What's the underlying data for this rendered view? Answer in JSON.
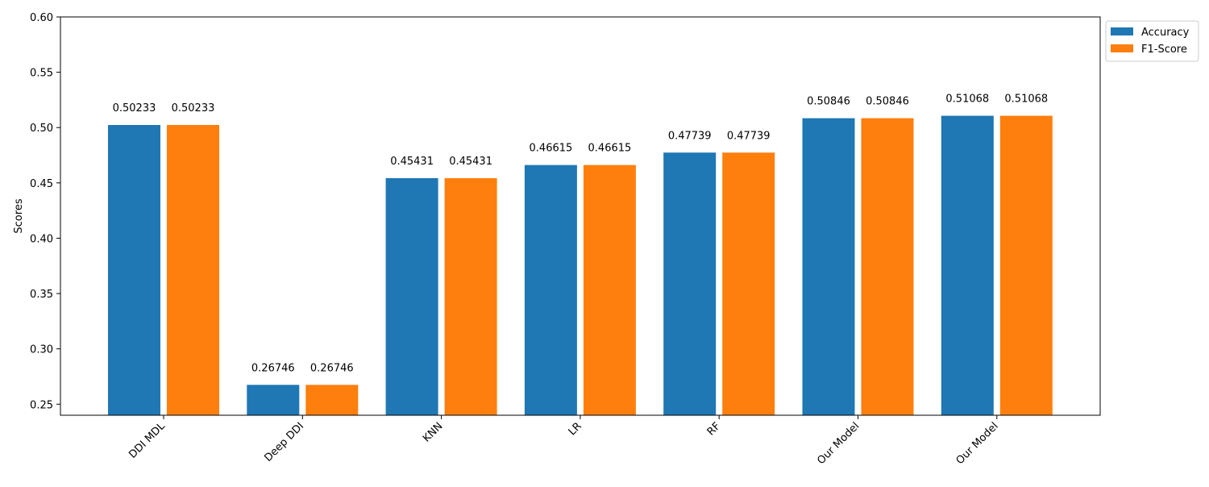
{
  "chart_data": {
    "type": "bar",
    "title": "",
    "xlabel": "",
    "ylabel": "Scores",
    "ylim": [
      0.24,
      0.6
    ],
    "yticks": [
      "0.25",
      "0.30",
      "0.35",
      "0.40",
      "0.45",
      "0.50",
      "0.55",
      "0.60"
    ],
    "categories": [
      "DDI MDL",
      "Deep DDI",
      "KNN",
      "LR",
      "RF",
      "Our Model",
      "Our Model"
    ],
    "series": [
      {
        "name": "Accuracy",
        "color": "#1f77b4",
        "values": [
          0.50233,
          0.26746,
          0.45431,
          0.46615,
          0.47739,
          0.50846,
          0.51068
        ],
        "labels": [
          "0.50233",
          "0.26746",
          "0.45431",
          "0.46615",
          "0.47739",
          "0.50846",
          "0.51068"
        ]
      },
      {
        "name": "F1-Score",
        "color": "#ff7f0e",
        "values": [
          0.50233,
          0.26746,
          0.45431,
          0.46615,
          0.47739,
          0.50846,
          0.51068
        ],
        "labels": [
          "0.50233",
          "0.26746",
          "0.45431",
          "0.46615",
          "0.47739",
          "0.50846",
          "0.51068"
        ]
      }
    ],
    "legend_position": "upper-right-outside",
    "grid": false
  }
}
